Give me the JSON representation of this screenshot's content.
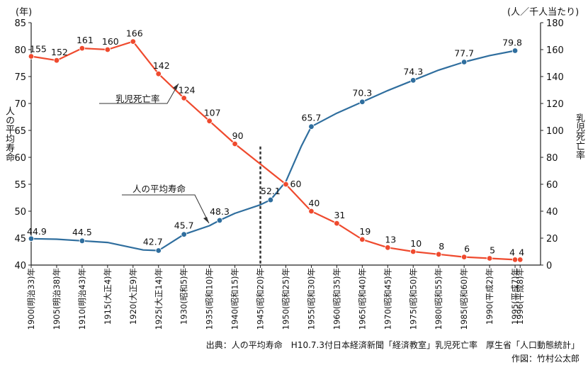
{
  "chart_data": {
    "type": "line",
    "left_axis": {
      "unit": "(年)",
      "label": "人の平均寿命",
      "range": [
        40,
        85
      ],
      "ticks": [
        40,
        45,
        50,
        55,
        60,
        65,
        70,
        75,
        80,
        85
      ]
    },
    "right_axis": {
      "unit": "(人／千人当たり)",
      "label": "乳児死亡率",
      "range": [
        0,
        180
      ],
      "ticks": [
        0,
        20,
        40,
        60,
        80,
        100,
        120,
        140,
        160,
        180
      ]
    },
    "x_ticks": [
      {
        "year": 1900,
        "label": "1900(明治33)年"
      },
      {
        "year": 1905,
        "label": "1905(明治38)年"
      },
      {
        "year": 1910,
        "label": "1910(明治43)年"
      },
      {
        "year": 1915,
        "label": "1915(大正4)年"
      },
      {
        "year": 1920,
        "label": "1920(大正9)年"
      },
      {
        "year": 1925,
        "label": "1925(大正14)年"
      },
      {
        "year": 1930,
        "label": "1930(昭和5)年"
      },
      {
        "year": 1935,
        "label": "1935(昭和10)年"
      },
      {
        "year": 1940,
        "label": "1940(昭和15)年"
      },
      {
        "year": 1945,
        "label": "1945(昭和20)年"
      },
      {
        "year": 1950,
        "label": "1950(昭和25)年"
      },
      {
        "year": 1955,
        "label": "1955(昭和30)年"
      },
      {
        "year": 1960,
        "label": "1960(昭和35)年"
      },
      {
        "year": 1965,
        "label": "1965(昭和40)年"
      },
      {
        "year": 1970,
        "label": "1970(昭和45)年"
      },
      {
        "year": 1975,
        "label": "1975(昭和50)年"
      },
      {
        "year": 1980,
        "label": "1980(昭和55)年"
      },
      {
        "year": 1985,
        "label": "1985(昭和60)年"
      },
      {
        "year": 1990,
        "label": "1990(平成2)年"
      },
      {
        "year": 1995,
        "label": "1995(平成7)年"
      },
      {
        "year": 1996,
        "label": "1996(平成8)年"
      }
    ],
    "series": [
      {
        "name": "人の平均寿命",
        "axis": "left",
        "color": "#2f6e9e",
        "points": [
          {
            "x": 1900,
            "y": 44.9,
            "label": "44.9"
          },
          {
            "x": 1905,
            "y": 44.8
          },
          {
            "x": 1910,
            "y": 44.5,
            "label": "44.5"
          },
          {
            "x": 1915,
            "y": 44.2
          },
          {
            "x": 1920,
            "y": 43.2
          },
          {
            "x": 1922,
            "y": 42.8
          },
          {
            "x": 1925,
            "y": 42.7,
            "label": "42.7"
          },
          {
            "x": 1930,
            "y": 45.7,
            "label": "45.7"
          },
          {
            "x": 1935,
            "y": 47.3
          },
          {
            "x": 1937,
            "y": 48.3,
            "label": "48.3"
          },
          {
            "x": 1940,
            "y": 49.6
          },
          {
            "x": 1945,
            "y": 51.2
          },
          {
            "x": 1947,
            "y": 52.1,
            "label": "52.1"
          },
          {
            "x": 1950,
            "y": 55.5
          },
          {
            "x": 1953,
            "y": 62.0
          },
          {
            "x": 1955,
            "y": 65.7,
            "label": "65.7"
          },
          {
            "x": 1960,
            "y": 68.2
          },
          {
            "x": 1965,
            "y": 70.3,
            "label": "70.3"
          },
          {
            "x": 1970,
            "y": 72.4
          },
          {
            "x": 1975,
            "y": 74.3,
            "label": "74.3"
          },
          {
            "x": 1980,
            "y": 76.2
          },
          {
            "x": 1985,
            "y": 77.7,
            "label": "77.7"
          },
          {
            "x": 1990,
            "y": 78.9
          },
          {
            "x": 1995,
            "y": 79.8,
            "label": "79.8"
          }
        ]
      },
      {
        "name": "乳児死亡率",
        "axis": "right",
        "color": "#ef4a2e",
        "points": [
          {
            "x": 1900,
            "y": 155,
            "label": "155"
          },
          {
            "x": 1905,
            "y": 152,
            "label": "152"
          },
          {
            "x": 1910,
            "y": 161,
            "label": "161"
          },
          {
            "x": 1915,
            "y": 160,
            "label": "160"
          },
          {
            "x": 1920,
            "y": 166,
            "label": "166"
          },
          {
            "x": 1925,
            "y": 142,
            "label": "142"
          },
          {
            "x": 1930,
            "y": 124,
            "label": "124"
          },
          {
            "x": 1935,
            "y": 107,
            "label": "107"
          },
          {
            "x": 1940,
            "y": 90,
            "label": "90"
          },
          {
            "x": 1950,
            "y": 60,
            "label": "60"
          },
          {
            "x": 1955,
            "y": 40,
            "label": "40"
          },
          {
            "x": 1960,
            "y": 31,
            "label": "31"
          },
          {
            "x": 1965,
            "y": 19,
            "label": "19"
          },
          {
            "x": 1970,
            "y": 13,
            "label": "13"
          },
          {
            "x": 1975,
            "y": 10,
            "label": "10"
          },
          {
            "x": 1980,
            "y": 8,
            "label": "8"
          },
          {
            "x": 1985,
            "y": 6,
            "label": "6"
          },
          {
            "x": 1990,
            "y": 5,
            "label": "5"
          },
          {
            "x": 1995,
            "y": 4,
            "label": "4"
          },
          {
            "x": 1996,
            "y": 4,
            "label": "4"
          }
        ]
      }
    ],
    "annotations": {
      "life_series_label": "人の平均寿命",
      "infant_series_label": "乳児死亡率",
      "marker_year": 1945
    },
    "grid": false
  },
  "source": {
    "line1": "出典：人の平均寿命　H10.7.3付日本経済新聞「経済教室」乳児死亡率　厚生省「人口動態統計」",
    "line2": "作図：竹村公太郎"
  }
}
